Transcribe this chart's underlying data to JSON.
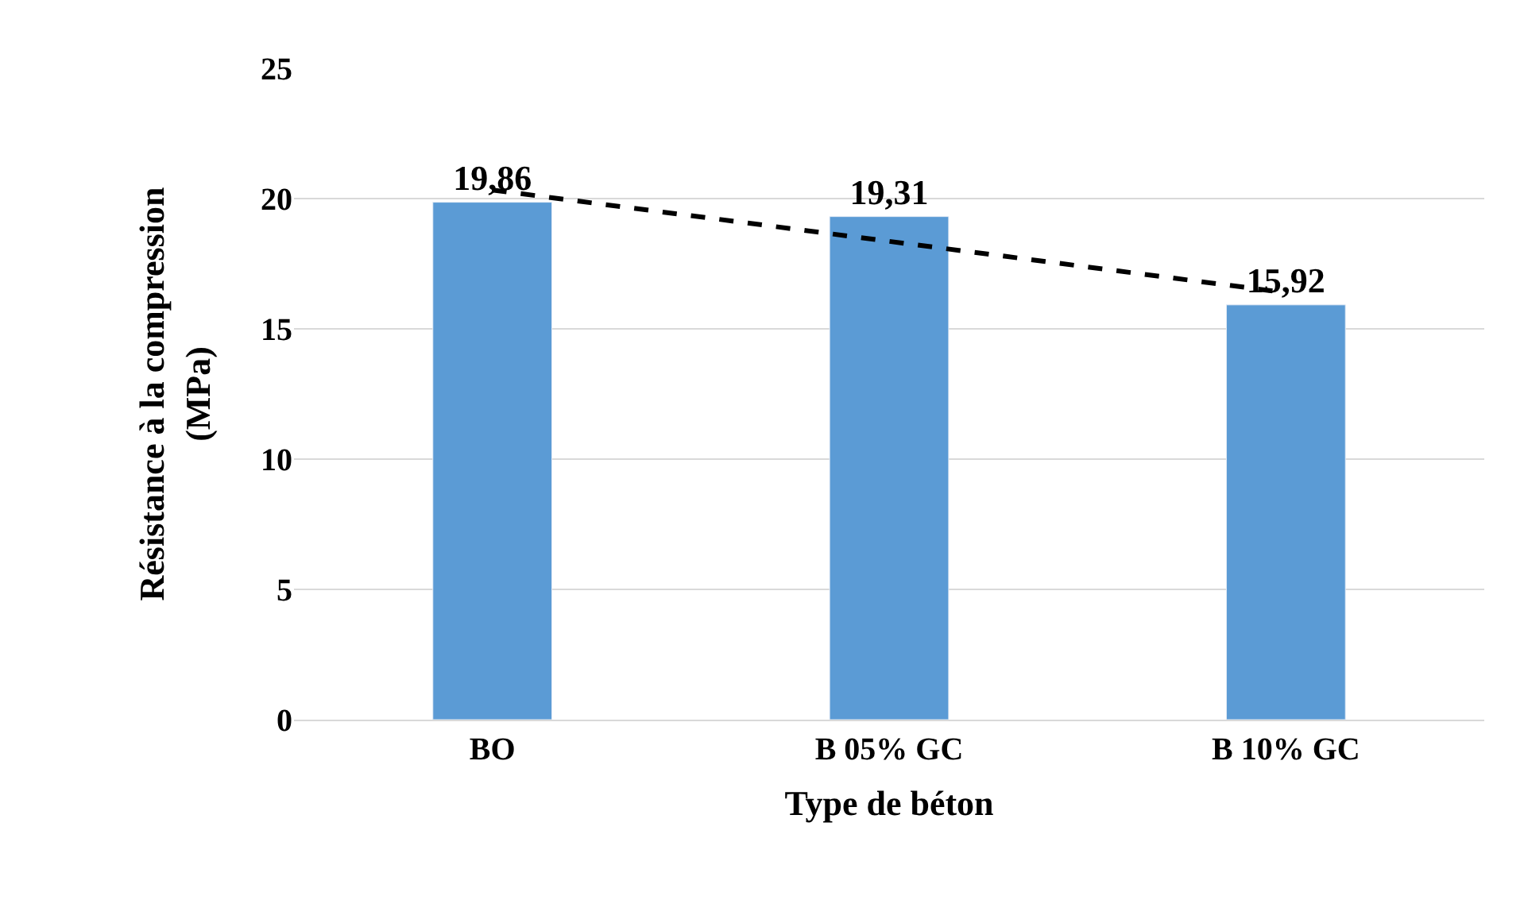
{
  "chart_data": {
    "type": "bar",
    "xlabel": "Type de béton",
    "ylabel": "Résistance à la compression\n(MPa)",
    "categories": [
      "BO",
      "B 05% GC",
      "B 10% GC"
    ],
    "series": [
      {
        "color": "#5b9bd5",
        "values": [
          19.86,
          19.31,
          15.92
        ],
        "value_labels": [
          "19,86",
          "19,31",
          "15,92"
        ]
      },
      {
        "type": "line",
        "color": "#000000",
        "values": [
          20.33,
          18.36,
          16.39
        ],
        "line_style": "dashed",
        "marker": "none"
      }
    ],
    "ylim": [
      0,
      25
    ],
    "yticks": [
      0,
      5,
      10,
      15,
      20,
      25
    ],
    "grid": "y"
  }
}
